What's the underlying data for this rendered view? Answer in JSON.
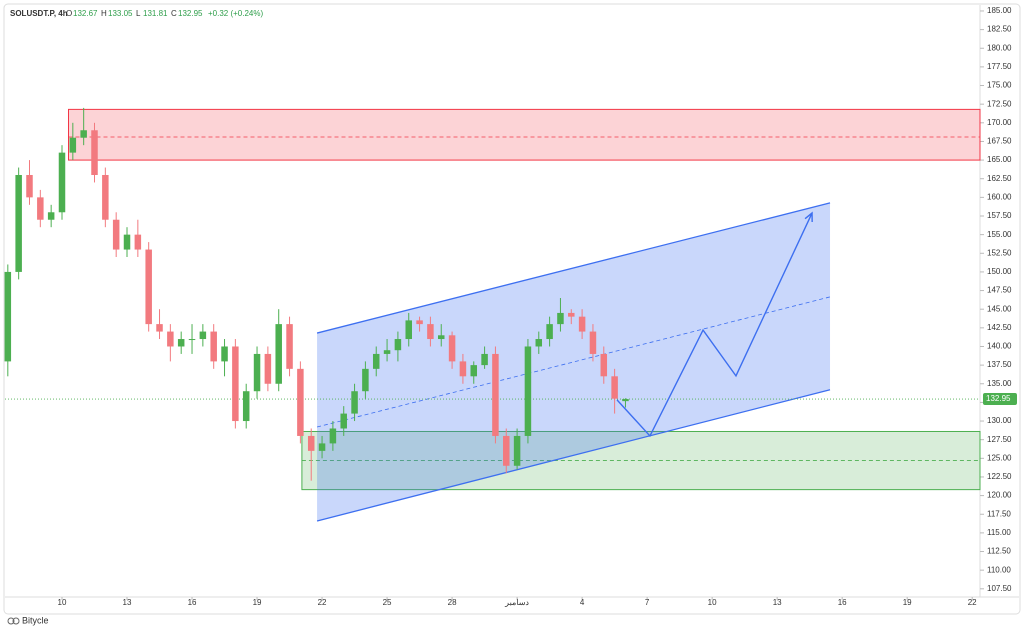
{
  "header": {
    "symbol": "SOLUSDT.P, 4h",
    "ohlc": [
      {
        "k": "O",
        "v": "132.67"
      },
      {
        "k": "H",
        "v": "133.05"
      },
      {
        "k": "L",
        "v": "131.81"
      },
      {
        "k": "C",
        "v": "132.95"
      }
    ],
    "change": "+0.32 (+0.24%)"
  },
  "footer": {
    "brand": "Bitycle"
  },
  "chart_data": {
    "type": "candlestick",
    "x": [
      7.5,
      8,
      8.5,
      9,
      9.5,
      10,
      10.5,
      11,
      11.5,
      12,
      12.5,
      13,
      13.5,
      14,
      14.5,
      15,
      15.5,
      16,
      16.5,
      17,
      17.5,
      18,
      18.5,
      19,
      19.5,
      20,
      20.5,
      21,
      21.5,
      22,
      22.5,
      23,
      23.5,
      24,
      24.5,
      25,
      25.5,
      26,
      26.5,
      27,
      27.5,
      28,
      28.5,
      29,
      29.5,
      30,
      30.5,
      31,
      31.5,
      32,
      32.5,
      33,
      33.5,
      34,
      34.5,
      35,
      35.5,
      36
    ],
    "open": [
      138,
      150,
      163,
      160,
      157,
      158,
      166,
      168,
      169,
      163,
      157,
      153,
      155,
      153,
      143,
      142,
      140,
      141,
      141,
      142,
      138,
      140,
      130,
      134,
      139,
      135,
      143,
      137,
      128,
      126,
      127,
      129,
      131,
      134,
      137,
      139,
      139.5,
      141,
      143.5,
      143,
      141,
      141.5,
      138,
      136,
      137.5,
      139,
      128,
      124,
      128,
      140,
      141,
      143,
      144.5,
      144,
      142,
      139,
      136,
      132.67
    ],
    "high": [
      151,
      164,
      165,
      161,
      159,
      167,
      170,
      172,
      170,
      164,
      158,
      156,
      157,
      154,
      145,
      143,
      142,
      143,
      143,
      143,
      141,
      141,
      135,
      140,
      140,
      145,
      144,
      138,
      129,
      128,
      130,
      132,
      135,
      138,
      140,
      141,
      142,
      144.5,
      144,
      144,
      143,
      142,
      139,
      138,
      140,
      140,
      129,
      129,
      141,
      142,
      144,
      146.5,
      145,
      145,
      143,
      140,
      137,
      133.05
    ],
    "low": [
      136,
      149,
      159,
      156,
      156,
      157,
      165,
      167,
      162,
      156,
      152,
      152,
      152,
      142,
      141,
      138,
      139,
      139,
      140,
      137,
      136,
      129,
      129,
      133,
      134,
      134,
      136,
      127,
      122,
      125,
      126,
      128,
      130,
      133,
      136,
      138,
      138,
      140,
      142,
      140,
      140,
      137,
      135,
      135,
      137,
      127,
      123,
      123.5,
      127,
      139,
      140,
      142,
      143,
      141,
      138,
      135,
      131,
      131.81
    ],
    "close": [
      150,
      163,
      160,
      157,
      158,
      166,
      168,
      169,
      163,
      157,
      153,
      155,
      153,
      143,
      142,
      140,
      141,
      141,
      142,
      138,
      140,
      130,
      134,
      139,
      135,
      143,
      137,
      128,
      126,
      127,
      129,
      131,
      134,
      137,
      139,
      139.5,
      141,
      143.5,
      143,
      141,
      141.5,
      138,
      136,
      137.5,
      139,
      128,
      124,
      128,
      140,
      141,
      143,
      144.5,
      144,
      142,
      139,
      136,
      133,
      132.95
    ],
    "up_color": "#4caf50",
    "down_color": "#f27a7f",
    "xlim": [
      7.37,
      52.36
    ],
    "xticks": [
      10,
      13,
      16,
      19,
      22,
      25,
      28,
      {
        "value": 31,
        "label": "دسامبر"
      },
      {
        "value": 34,
        "label": "4"
      },
      {
        "value": 37,
        "label": "7"
      },
      {
        "value": 40,
        "label": "10"
      },
      {
        "value": 43,
        "label": "13"
      },
      {
        "value": 46,
        "label": "16"
      },
      {
        "value": 49,
        "label": "19"
      },
      {
        "value": 52,
        "label": "22"
      }
    ],
    "ylim": [
      106.4,
      185.8
    ],
    "yticks": [
      {
        "value": 107.5,
        "label": "107.50"
      },
      {
        "value": 110,
        "label": "110.00"
      },
      {
        "value": 112.5,
        "label": "112.50"
      },
      {
        "value": 115,
        "label": "115.00"
      },
      {
        "value": 117.5,
        "label": "117.50"
      },
      {
        "value": 120,
        "label": "120.00"
      },
      {
        "value": 122.5,
        "label": "122.50"
      },
      {
        "value": 125,
        "label": "125.00"
      },
      {
        "value": 127.5,
        "label": "127.50"
      },
      {
        "value": 130,
        "label": "130.00"
      },
      {
        "value": 132.5,
        "label": "132.50"
      },
      {
        "value": 135,
        "label": "135.00"
      },
      {
        "value": 137.5,
        "label": "137.50"
      },
      {
        "value": 140,
        "label": "140.00"
      },
      {
        "value": 142.5,
        "label": "142.50"
      },
      {
        "value": 145,
        "label": "145.00"
      },
      {
        "value": 147.5,
        "label": "147.50"
      },
      {
        "value": 150,
        "label": "150.00"
      },
      {
        "value": 152.5,
        "label": "152.50"
      },
      {
        "value": 155,
        "label": "155.00"
      },
      {
        "value": 157.5,
        "label": "157.50"
      },
      {
        "value": 160,
        "label": "160.00"
      },
      {
        "value": 162.5,
        "label": "162.50"
      },
      {
        "value": 165,
        "label": "165.00"
      },
      {
        "value": 167.5,
        "label": "167.50"
      },
      {
        "value": 170,
        "label": "170.00"
      },
      {
        "value": 172.5,
        "label": "172.50"
      },
      {
        "value": 175,
        "label": "175.00"
      },
      {
        "value": 177.5,
        "label": "177.50"
      },
      {
        "value": 180,
        "label": "180.00"
      },
      {
        "value": 182.5,
        "label": "182.50"
      },
      {
        "value": 185,
        "label": "185.00"
      }
    ],
    "grid": false,
    "last_price": {
      "value": 132.95,
      "label": "132.95",
      "color": "#4caf50"
    },
    "zones": [
      {
        "x0": 10.3,
        "top": 171.8,
        "bottom": 165,
        "mid": 168.1,
        "color": "#f23645"
      },
      {
        "x0": 21.07,
        "top": 128.6,
        "bottom": 120.8,
        "mid": 124.7,
        "color": "#4caf50"
      }
    ],
    "channel": {
      "color": "#3d6ff0",
      "upper": {
        "x": [
          21.77,
          45.44
        ],
        "y": [
          141.8,
          159.26
        ]
      },
      "lower": {
        "x": [
          21.77,
          45.44
        ],
        "y": [
          116.6,
          134.2
        ]
      },
      "middle": {
        "x": [
          21.77,
          45.44
        ],
        "y": [
          129.2,
          146.65
        ]
      }
    },
    "projection": {
      "color": "#3d6ff0",
      "x": [
        35.61,
        37.13,
        39.58,
        41.1,
        44.61
      ],
      "y": [
        132.84,
        128.0,
        142.2,
        136.06,
        157.9
      ]
    }
  }
}
